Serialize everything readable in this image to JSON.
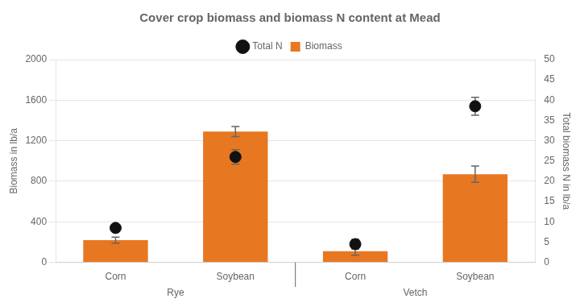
{
  "chart_data": {
    "type": "bar",
    "title": "Cover crop biomass and biomass N content at Mead",
    "ylabel": "Biomass in lb/a",
    "y2label": "Total biomass N in lb/a",
    "groups": [
      "Rye",
      "Vetch"
    ],
    "categories": [
      "Corn",
      "Soybean",
      "Corn",
      "Soybean"
    ],
    "series": [
      {
        "name": "Biomass",
        "color": "#E87722",
        "values": [
          220,
          1290,
          110,
          870
        ],
        "errors": [
          30,
          50,
          40,
          80
        ]
      },
      {
        "name": "Total N",
        "type": "scatter",
        "marker": "circle",
        "color": "#111111",
        "axis": "y2",
        "values": [
          8.5,
          26.0,
          4.5,
          38.5
        ],
        "errors": [
          0.8,
          1.8,
          1.2,
          2.2
        ]
      }
    ],
    "ylim": [
      0,
      2000
    ],
    "yticks": [
      0,
      400,
      800,
      1200,
      1600,
      2000
    ],
    "y2lim": [
      0,
      50
    ],
    "y2ticks": [
      0,
      5,
      10,
      15,
      20,
      25,
      30,
      35,
      40,
      45,
      50
    ],
    "grid": true,
    "legend": "top"
  }
}
